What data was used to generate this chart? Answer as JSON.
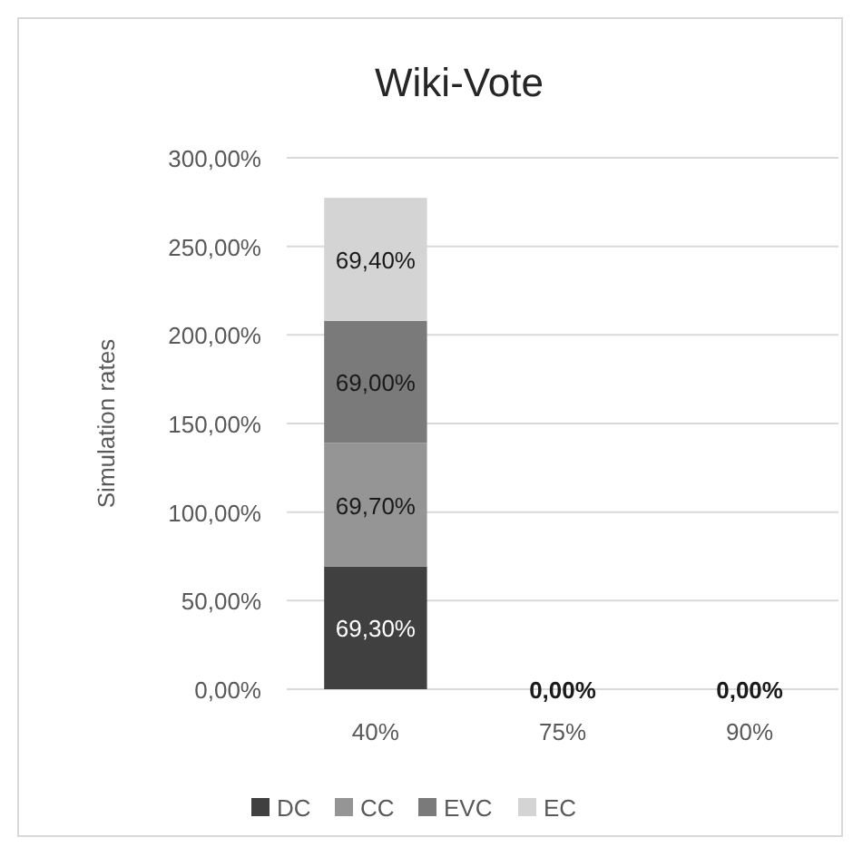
{
  "chart_data": {
    "type": "bar",
    "title": "Wiki-Vote",
    "ylabel": "Simulation rates",
    "categories": [
      "40%",
      "75%",
      "90%"
    ],
    "stacked": true,
    "series": [
      {
        "name": "DC",
        "color": "#404040",
        "values": [
          69.3,
          0,
          0
        ],
        "value_labels": [
          "69,30%",
          null,
          null
        ]
      },
      {
        "name": "CC",
        "color": "#959595",
        "values": [
          69.7,
          0,
          0
        ],
        "value_labels": [
          "69,70%",
          null,
          null
        ]
      },
      {
        "name": "EVC",
        "color": "#7a7a7a",
        "values": [
          69.0,
          0,
          0
        ],
        "value_labels": [
          "69,00%",
          null,
          null
        ]
      },
      {
        "name": "EC",
        "color": "#d4d4d4",
        "values": [
          69.4,
          0,
          0
        ],
        "value_labels": [
          "69,40%",
          "0,00%",
          "0,00%"
        ]
      }
    ],
    "ylim": [
      0,
      300
    ],
    "yticks": [
      {
        "value": 0,
        "label": "0,00%"
      },
      {
        "value": 50,
        "label": "50,00%"
      },
      {
        "value": 100,
        "label": "100,00%"
      },
      {
        "value": 150,
        "label": "150,00%"
      },
      {
        "value": 200,
        "label": "200,00%"
      },
      {
        "value": 250,
        "label": "250,00%"
      },
      {
        "value": 300,
        "label": "300,00%"
      }
    ],
    "grid": "y",
    "legend": "bottom"
  }
}
